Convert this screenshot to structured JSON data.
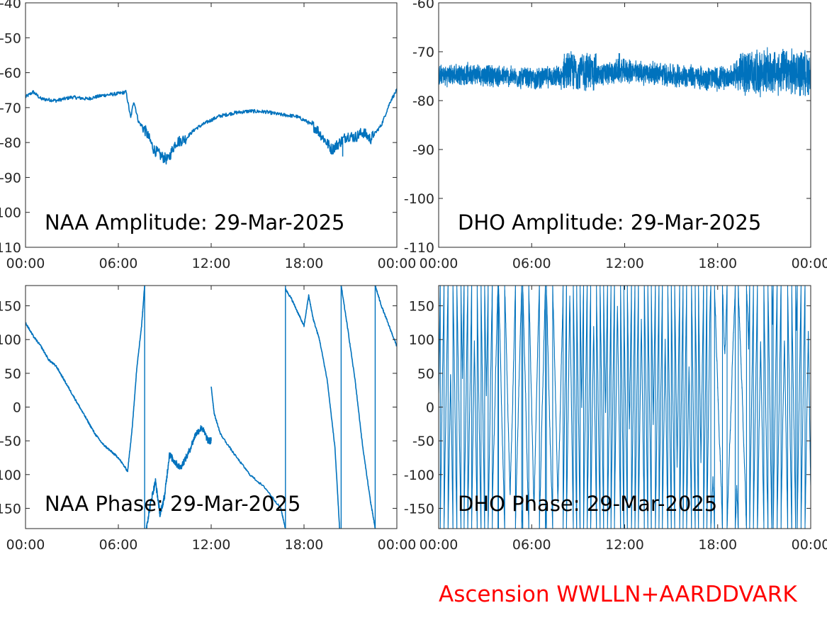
{
  "figure": {
    "footer": "Ascension WWLLN+AARDDVARK"
  },
  "colors": {
    "series": "#0072bd",
    "axis": "#262626",
    "footer": "#ff0000"
  },
  "chart_data": [
    {
      "id": "naa-amp",
      "type": "line",
      "title": "NAA Amplitude: 29-Mar-2025",
      "xlabel": "",
      "ylabel": "",
      "xlim": [
        0,
        24
      ],
      "ylim": [
        -110,
        -40
      ],
      "xticks": [
        0,
        6,
        12,
        18,
        24
      ],
      "xticklabels": [
        "00:00",
        "06:00",
        "12:00",
        "18:00",
        "00:00"
      ],
      "yticks": [
        -110,
        -100,
        -90,
        -80,
        -70,
        -60,
        -50,
        -40
      ],
      "yticklabels": [
        "-110",
        "-100",
        "-90",
        "-80",
        "-70",
        "-60",
        "-50",
        "-40"
      ],
      "grid": false,
      "series": [
        {
          "x": [
            0,
            0.5,
            1,
            2,
            3,
            4,
            5,
            6,
            6.5,
            6.8,
            7.0,
            7.3,
            7.8,
            8.3,
            8.8,
            9.2,
            9.7,
            10.3,
            11.0,
            11.8,
            12.5,
            13.5,
            14.5,
            15.5,
            16.5,
            17.5,
            18.2,
            18.8,
            19.3,
            19.8,
            20.3,
            20.8,
            21.3,
            21.8,
            22.3,
            23.0,
            23.6,
            24
          ],
          "y": [
            -67,
            -65.5,
            -67.5,
            -68,
            -67,
            -67.5,
            -66.5,
            -66,
            -65.5,
            -73,
            -68,
            -74,
            -77,
            -82,
            -84,
            -85,
            -80,
            -79,
            -76,
            -74,
            -72.5,
            -71.5,
            -71,
            -71.2,
            -72,
            -72.5,
            -74,
            -76,
            -79,
            -82,
            -80,
            -78,
            -78.5,
            -77,
            -79,
            -75,
            -68,
            -65
          ]
        }
      ]
    },
    {
      "id": "dho-amp",
      "type": "line",
      "title": "DHO Amplitude: 29-Mar-2025",
      "xlabel": "",
      "ylabel": "",
      "xlim": [
        0,
        24
      ],
      "ylim": [
        -110,
        -60
      ],
      "xticks": [
        0,
        6,
        12,
        18,
        24
      ],
      "xticklabels": [
        "00:00",
        "06:00",
        "12:00",
        "18:00",
        "00:00"
      ],
      "yticks": [
        -110,
        -100,
        -90,
        -80,
        -70,
        -60
      ],
      "yticklabels": [
        "-110",
        "-100",
        "-90",
        "-80",
        "-70",
        "-60"
      ],
      "grid": false,
      "series": [
        {
          "x": [
            0,
            2,
            4,
            6,
            7.5,
            8,
            9,
            10,
            11,
            11.5,
            12,
            14,
            16,
            18,
            19,
            20,
            22,
            24
          ],
          "y": [
            -75,
            -74.5,
            -75,
            -75.5,
            -75,
            -75.5,
            -74,
            -75,
            -74.5,
            -74,
            -74,
            -74.5,
            -75,
            -75.5,
            -75,
            -74.5,
            -75,
            -75.5
          ],
          "noise": [
            {
              "x_range": [
                0,
                8
              ],
              "y_range": [
                -78,
                -73
              ]
            },
            {
              "x_range": [
                8,
                10.2
              ],
              "y_range": [
                -78.5,
                -69.5
              ]
            },
            {
              "x_range": [
                10.2,
                19.2
              ],
              "y_range": [
                -78,
                -72.5
              ]
            },
            {
              "x_range": [
                19.2,
                24
              ],
              "y_range": [
                -79.5,
                -69
              ]
            }
          ]
        }
      ]
    },
    {
      "id": "naa-phase",
      "type": "line",
      "title": "NAA Phase: 29-Mar-2025",
      "xlabel": "",
      "ylabel": "",
      "xlim": [
        0,
        24
      ],
      "ylim": [
        -180,
        180
      ],
      "xticks": [
        0,
        6,
        12,
        18,
        24
      ],
      "xticklabels": [
        "00:00",
        "06:00",
        "12:00",
        "18:00",
        "00:00"
      ],
      "yticks": [
        -150,
        -100,
        -50,
        0,
        50,
        100,
        150
      ],
      "yticklabels": [
        "-150",
        "-100",
        "-50",
        "0",
        "50",
        "100",
        "150"
      ],
      "grid": false,
      "series": [
        {
          "segments": [
            {
              "x": [
                0,
                0.5,
                1,
                1.5,
                2,
                2.5,
                3,
                3.5,
                4,
                4.5,
                5,
                5.5,
                6,
                6.6
              ],
              "y": [
                125,
                105,
                90,
                70,
                60,
                40,
                20,
                0,
                -20,
                -40,
                -55,
                -65,
                -75,
                -95
              ]
            },
            {
              "x": [
                6.6,
                6.9,
                7.2,
                7.5,
                7.7
              ],
              "y": [
                -95,
                -30,
                60,
                120,
                180
              ]
            },
            {
              "x": [
                7.8,
                8.1,
                8.4,
                8.7,
                9.0,
                9.3,
                9.6,
                10.0,
                10.5,
                11.0,
                11.4,
                11.8,
                12.0
              ],
              "y": [
                -180,
                -140,
                -110,
                -160,
                -130,
                -70,
                -80,
                -90,
                -70,
                -40,
                -30,
                -50,
                -50
              ]
            },
            {
              "x": [
                12.0,
                12.2,
                12.6,
                13.5,
                14.5,
                15.5,
                16.5,
                16.8
              ],
              "y": [
                30,
                -10,
                -40,
                -70,
                -100,
                -120,
                -150,
                -180
              ]
            },
            {
              "x": [
                16.8,
                17.2,
                17.6,
                18.0,
                18.3,
                18.6,
                19.0,
                19.5,
                20.0,
                20.3
              ],
              "y": [
                175,
                160,
                140,
                120,
                165,
                130,
                100,
                40,
                -60,
                -180
              ]
            },
            {
              "x": [
                20.4,
                20.8,
                21.3,
                21.8,
                22.3,
                22.6
              ],
              "y": [
                180,
                120,
                40,
                -60,
                -140,
                -180
              ]
            },
            {
              "x": [
                22.6,
                23.0,
                23.5,
                24.0
              ],
              "y": [
                180,
                150,
                120,
                90
              ]
            }
          ],
          "vlines": [
            7.7,
            16.8,
            20.4,
            22.6
          ]
        }
      ]
    },
    {
      "id": "dho-phase",
      "type": "line",
      "title": "DHO Phase: 29-Mar-2025",
      "xlabel": "",
      "ylabel": "",
      "xlim": [
        0,
        24
      ],
      "ylim": [
        -180,
        180
      ],
      "xticks": [
        0,
        6,
        12,
        18,
        24
      ],
      "xticklabels": [
        "00:00",
        "06:00",
        "12:00",
        "18:00",
        "00:00"
      ],
      "yticks": [
        -150,
        -100,
        -50,
        0,
        50,
        100,
        150
      ],
      "yticklabels": [
        "-150",
        "-100",
        "-50",
        "0",
        "50",
        "100",
        "150"
      ],
      "grid": false,
      "series": [
        {
          "wrap_range": [
            -180,
            180
          ],
          "slopes_deg_per_hour": [
            {
              "x_range": [
                0,
                3.5
              ],
              "rate": 1450
            },
            {
              "x_range": [
                3.5,
                8
              ],
              "rate": 900
            },
            {
              "x_range": [
                8,
                17.5
              ],
              "rate": 1600
            },
            {
              "x_range": [
                17.5,
                20
              ],
              "rate": 700
            },
            {
              "x_range": [
                20,
                24
              ],
              "rate": 1400
            }
          ]
        }
      ]
    }
  ]
}
